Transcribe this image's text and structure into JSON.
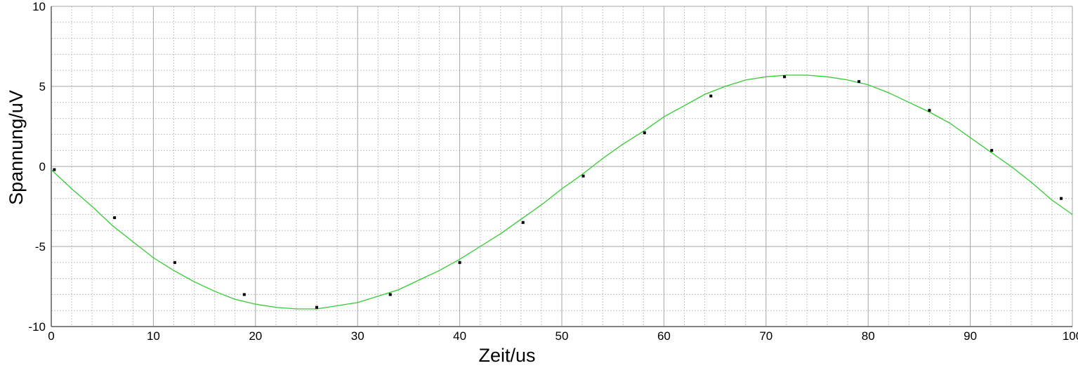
{
  "chart_data": {
    "type": "line",
    "title": "",
    "xlabel": "Zeit/us",
    "ylabel": "Spannung/uV",
    "xlim": [
      0,
      100
    ],
    "ylim": [
      -10,
      10
    ],
    "x_ticks": [
      0,
      10,
      20,
      30,
      40,
      50,
      60,
      70,
      80,
      90,
      100
    ],
    "y_ticks": [
      -10,
      -5,
      0,
      5,
      10
    ],
    "x_tick_labels": [
      "0",
      "10",
      "20",
      "30",
      "40",
      "50",
      "60",
      "70",
      "80",
      "90",
      "100"
    ],
    "y_tick_labels": [
      "-10",
      "-5",
      "0",
      "5",
      "10"
    ],
    "grid": true,
    "legend": "none",
    "series": [
      {
        "style": "line",
        "color": "#33cc33",
        "x": [
          0,
          2,
          4,
          6,
          8,
          10,
          12,
          14,
          16,
          18,
          20,
          22,
          24,
          26,
          28,
          30,
          32,
          34,
          36,
          38,
          40,
          42,
          44,
          46,
          48,
          50,
          52,
          54,
          56,
          58,
          60,
          62,
          64,
          66,
          68,
          70,
          72,
          74,
          76,
          78,
          80,
          82,
          84,
          86,
          88,
          90,
          92,
          94,
          96,
          98,
          100
        ],
        "y": [
          -0.2,
          -1.4,
          -2.5,
          -3.7,
          -4.7,
          -5.7,
          -6.5,
          -7.2,
          -7.8,
          -8.3,
          -8.6,
          -8.8,
          -8.9,
          -8.9,
          -8.7,
          -8.5,
          -8.1,
          -7.7,
          -7.1,
          -6.5,
          -5.8,
          -5.0,
          -4.2,
          -3.3,
          -2.4,
          -1.4,
          -0.5,
          0.5,
          1.4,
          2.2,
          3.1,
          3.8,
          4.5,
          5.0,
          5.4,
          5.6,
          5.7,
          5.7,
          5.6,
          5.4,
          5.1,
          4.6,
          4.0,
          3.4,
          2.7,
          1.8,
          0.9,
          0.0,
          -1.0,
          -2.1,
          -3.0
        ]
      },
      {
        "style": "markers",
        "color": "#000000",
        "x": [
          0.3,
          6.2,
          12.1,
          18.9,
          26.0,
          33.2,
          40.0,
          46.2,
          52.1,
          58.1,
          64.6,
          71.8,
          79.1,
          86.0,
          92.1,
          98.9
        ],
        "y": [
          -0.2,
          -3.2,
          -6.0,
          -8.0,
          -8.8,
          -8.0,
          -6.0,
          -3.5,
          -0.6,
          2.1,
          4.4,
          5.6,
          5.3,
          3.5,
          1.0,
          -2.0
        ]
      }
    ]
  }
}
